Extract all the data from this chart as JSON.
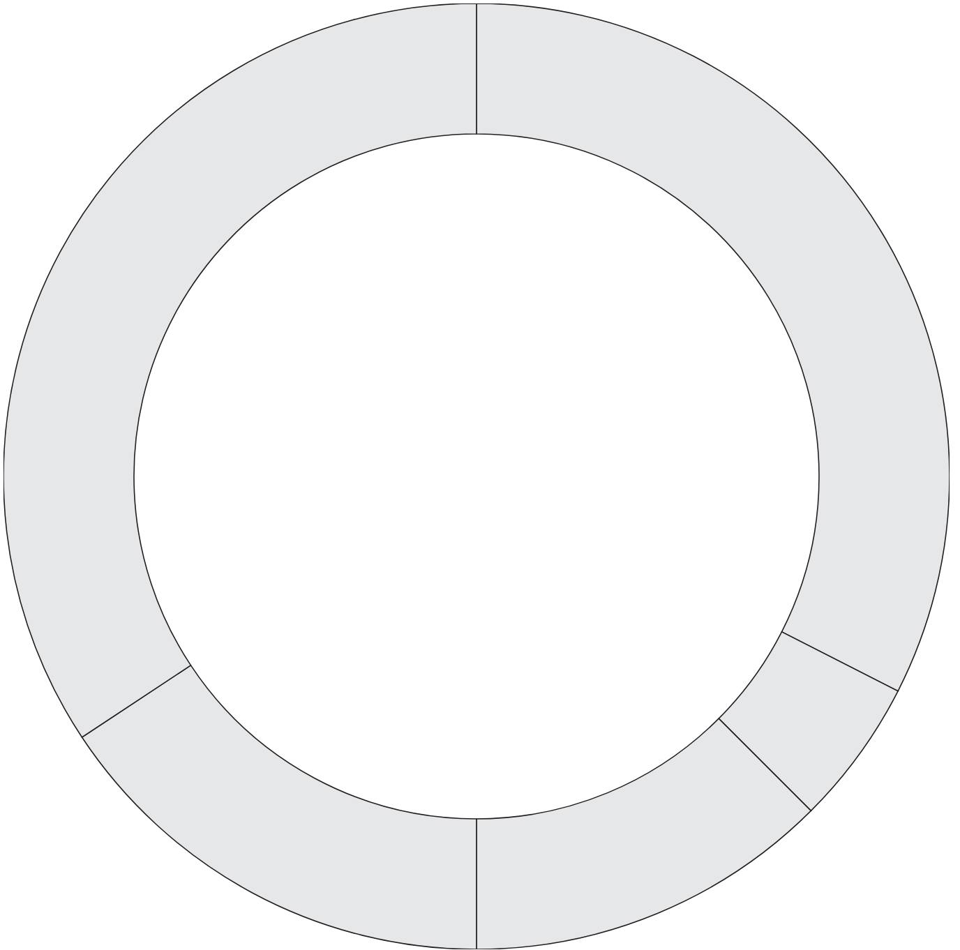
{
  "chart_data": {
    "type": "donut",
    "categories": [
      null,
      null,
      null,
      null,
      null
    ],
    "values": [
      32.5,
      5,
      12.5,
      15.7,
      34.3
    ],
    "colors": [
      "#e6e7e9",
      "#e6e7e9",
      "#e6e7e9",
      "#e6e7e9",
      "#e6e7e9"
    ]
  }
}
